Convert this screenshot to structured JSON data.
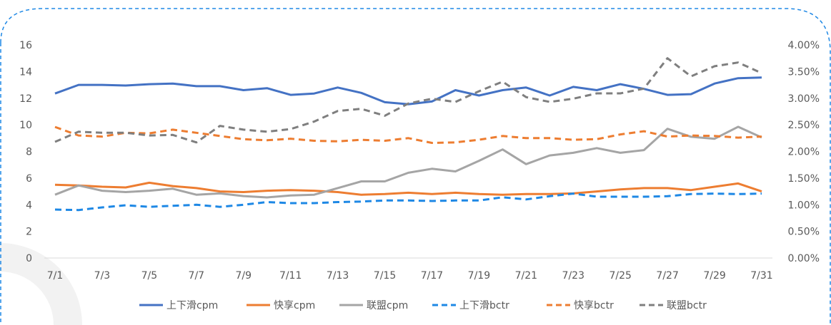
{
  "chart_data": {
    "type": "line",
    "title": "",
    "categories": [
      "7/1",
      "7/2",
      "7/3",
      "7/4",
      "7/5",
      "7/6",
      "7/7",
      "7/8",
      "7/9",
      "7/10",
      "7/11",
      "7/12",
      "7/13",
      "7/14",
      "7/15",
      "7/16",
      "7/17",
      "7/18",
      "7/19",
      "7/20",
      "7/21",
      "7/22",
      "7/23",
      "7/24",
      "7/25",
      "7/26",
      "7/27",
      "7/28",
      "7/29",
      "7/30",
      "7/31"
    ],
    "x_tick_labels": [
      "7/1",
      "7/3",
      "7/5",
      "7/7",
      "7/9",
      "7/11",
      "7/13",
      "7/15",
      "7/17",
      "7/19",
      "7/21",
      "7/23",
      "7/25",
      "7/27",
      "7/29",
      "7/31"
    ],
    "y_left": {
      "min": 0,
      "max": 16,
      "ticks": [
        "0",
        "2",
        "4",
        "6",
        "8",
        "10",
        "12",
        "14",
        "16"
      ]
    },
    "y_right": {
      "min": 0,
      "max": 4,
      "unit": "%",
      "ticks": [
        "0.00%",
        "0.50%",
        "1.00%",
        "1.50%",
        "2.00%",
        "2.50%",
        "3.00%",
        "3.50%",
        "4.00%"
      ]
    },
    "grid": false,
    "legend_position": "bottom",
    "series": [
      {
        "name": "上下滑cpm",
        "axis": "left",
        "style": "solid",
        "color": "#4472C4",
        "values": [
          12.35,
          13.0,
          13.0,
          12.95,
          13.05,
          13.1,
          12.9,
          12.9,
          12.6,
          12.75,
          12.25,
          12.35,
          12.8,
          12.4,
          11.7,
          11.55,
          11.75,
          12.6,
          12.2,
          12.6,
          12.8,
          12.2,
          12.85,
          12.6,
          13.05,
          12.7,
          12.25,
          12.3,
          13.1,
          13.5,
          13.55
        ]
      },
      {
        "name": "快享cpm",
        "axis": "left",
        "style": "solid",
        "color": "#ED7D31",
        "values": [
          5.5,
          5.45,
          5.35,
          5.3,
          5.65,
          5.4,
          5.25,
          5.0,
          4.95,
          5.05,
          5.1,
          5.05,
          4.95,
          4.75,
          4.8,
          4.9,
          4.8,
          4.9,
          4.8,
          4.75,
          4.8,
          4.8,
          4.85,
          5.0,
          5.15,
          5.25,
          5.25,
          5.1,
          5.35,
          5.6,
          5.0
        ]
      },
      {
        "name": "联盟cpm",
        "axis": "left",
        "style": "solid",
        "color": "#A5A5A5",
        "values": [
          4.75,
          5.45,
          5.05,
          4.95,
          5.05,
          5.2,
          4.75,
          4.85,
          4.65,
          4.55,
          4.7,
          4.75,
          5.25,
          5.75,
          5.75,
          6.4,
          6.7,
          6.5,
          7.3,
          8.15,
          7.05,
          7.7,
          7.9,
          8.25,
          7.9,
          8.1,
          9.7,
          9.1,
          8.95,
          9.85,
          9.05
        ]
      },
      {
        "name": "上下滑bctr",
        "axis": "right",
        "style": "dashed",
        "color": "#1E88E5",
        "values": [
          0.91,
          0.9,
          0.95,
          0.99,
          0.96,
          0.98,
          1.0,
          0.96,
          1.0,
          1.05,
          1.03,
          1.03,
          1.05,
          1.06,
          1.08,
          1.08,
          1.07,
          1.08,
          1.08,
          1.14,
          1.1,
          1.16,
          1.21,
          1.15,
          1.15,
          1.15,
          1.16,
          1.2,
          1.21,
          1.2,
          1.21
        ]
      },
      {
        "name": "快享bctr",
        "axis": "right",
        "style": "dashed",
        "color": "#ED7D31",
        "values": [
          2.46,
          2.3,
          2.28,
          2.35,
          2.34,
          2.41,
          2.35,
          2.29,
          2.23,
          2.21,
          2.24,
          2.2,
          2.19,
          2.22,
          2.2,
          2.25,
          2.16,
          2.17,
          2.22,
          2.29,
          2.25,
          2.25,
          2.22,
          2.23,
          2.32,
          2.38,
          2.28,
          2.3,
          2.29,
          2.26,
          2.28
        ]
      },
      {
        "name": "联盟bctr",
        "axis": "right",
        "style": "dashed",
        "color": "#7F7F7F",
        "values": [
          2.18,
          2.37,
          2.35,
          2.35,
          2.3,
          2.31,
          2.17,
          2.48,
          2.41,
          2.37,
          2.42,
          2.56,
          2.76,
          2.8,
          2.67,
          2.9,
          2.99,
          2.93,
          3.13,
          3.31,
          3.02,
          2.93,
          2.99,
          3.09,
          3.09,
          3.18,
          3.75,
          3.41,
          3.6,
          3.67,
          3.47
        ]
      }
    ]
  },
  "colors": {
    "frame_border": "#1E88E5",
    "axis_line": "#D9D9D9",
    "text": "#595959"
  }
}
